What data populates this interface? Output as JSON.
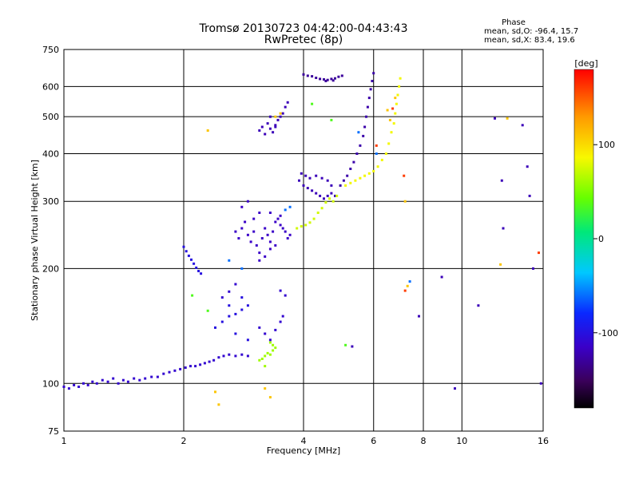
{
  "chart_data": {
    "type": "scatter",
    "title": "Tromsø 20130723 04:42:00-04:43:43",
    "subtitle": "RwPretec (8p)",
    "xlabel": "Frequency [MHz]",
    "ylabel": "Stationary phase Virtual Height [km]",
    "x_scale": "log",
    "y_scale": "log",
    "xlim": [
      1,
      16
    ],
    "ylim": [
      75,
      750
    ],
    "x_ticks": [
      {
        "value": 1,
        "label": "1"
      },
      {
        "value": 2,
        "label": "2"
      },
      {
        "value": 4,
        "label": "4"
      },
      {
        "value": 6,
        "label": "6"
      },
      {
        "value": 8,
        "label": "8"
      },
      {
        "value": 10,
        "label": "10"
      },
      {
        "value": 16,
        "label": "16"
      }
    ],
    "y_ticks": [
      {
        "value": 75,
        "label": "75"
      },
      {
        "value": 100,
        "label": "100"
      },
      {
        "value": 200,
        "label": "200"
      },
      {
        "value": 300,
        "label": "300"
      },
      {
        "value": 400,
        "label": "400"
      },
      {
        "value": 500,
        "label": "500"
      },
      {
        "value": 600,
        "label": "600"
      },
      {
        "value": 750,
        "label": "750"
      }
    ],
    "grid": true,
    "phase_stats": {
      "heading": "Phase",
      "line_o": "mean, sd,O: -96.4, 15.7",
      "line_x": "mean, sd,X:  83.4, 19.6"
    },
    "colorbar": {
      "label": "[deg]",
      "range": [
        -180,
        180
      ],
      "ticks": [
        {
          "value": 100,
          "label": "100"
        },
        {
          "value": 0,
          "label": "0"
        },
        {
          "value": -100,
          "label": "-100"
        }
      ]
    },
    "series": [
      {
        "phase": -110,
        "points": [
          [
            1.0,
            98
          ],
          [
            1.03,
            97
          ],
          [
            1.06,
            99
          ],
          [
            1.09,
            98
          ],
          [
            1.12,
            100
          ],
          [
            1.15,
            99
          ],
          [
            1.18,
            101
          ],
          [
            1.21,
            100
          ],
          [
            1.25,
            102
          ],
          [
            1.29,
            101
          ],
          [
            1.33,
            103
          ],
          [
            1.37,
            100
          ],
          [
            1.41,
            102
          ],
          [
            1.45,
            101
          ],
          [
            1.5,
            103
          ],
          [
            1.55,
            102
          ],
          [
            1.6,
            103
          ],
          [
            1.66,
            104
          ],
          [
            1.72,
            104
          ],
          [
            1.78,
            106
          ],
          [
            1.84,
            107
          ],
          [
            1.9,
            108
          ],
          [
            1.96,
            109
          ],
          [
            2.02,
            110
          ],
          [
            2.08,
            111
          ],
          [
            2.14,
            111
          ],
          [
            2.2,
            112
          ],
          [
            2.26,
            113
          ],
          [
            2.32,
            114
          ],
          [
            2.38,
            115
          ],
          [
            2.45,
            117
          ],
          [
            2.52,
            118
          ],
          [
            2.6,
            119
          ],
          [
            2.7,
            118
          ],
          [
            2.8,
            119
          ],
          [
            2.9,
            118
          ]
        ]
      },
      {
        "phase": -100,
        "points": [
          [
            2.0,
            228
          ],
          [
            2.03,
            222
          ],
          [
            2.06,
            216
          ],
          [
            2.09,
            211
          ],
          [
            2.12,
            206
          ],
          [
            2.15,
            201
          ],
          [
            2.18,
            197
          ],
          [
            2.21,
            194
          ],
          [
            2.4,
            140
          ],
          [
            2.5,
            145
          ],
          [
            2.6,
            150
          ],
          [
            2.7,
            152
          ],
          [
            2.8,
            156
          ],
          [
            2.9,
            160
          ],
          [
            2.6,
            160
          ],
          [
            2.8,
            168
          ],
          [
            2.7,
            135
          ],
          [
            2.9,
            130
          ]
        ]
      },
      {
        "phase": -115,
        "points": [
          [
            2.7,
            250
          ],
          [
            2.75,
            240
          ],
          [
            2.8,
            255
          ],
          [
            2.85,
            265
          ],
          [
            2.9,
            245
          ],
          [
            2.95,
            235
          ],
          [
            3.0,
            250
          ],
          [
            3.05,
            230
          ],
          [
            3.1,
            220
          ],
          [
            3.15,
            240
          ],
          [
            3.2,
            255
          ],
          [
            3.25,
            245
          ],
          [
            3.3,
            235
          ],
          [
            3.35,
            250
          ],
          [
            3.4,
            265
          ],
          [
            3.45,
            270
          ],
          [
            3.5,
            260
          ],
          [
            3.55,
            255
          ],
          [
            3.6,
            250
          ],
          [
            3.65,
            240
          ],
          [
            3.7,
            245
          ],
          [
            3.1,
            210
          ],
          [
            3.2,
            215
          ],
          [
            3.3,
            225
          ],
          [
            3.4,
            230
          ],
          [
            3.0,
            270
          ],
          [
            3.1,
            280
          ],
          [
            2.8,
            290
          ],
          [
            2.9,
            300
          ],
          [
            3.3,
            280
          ],
          [
            3.5,
            275
          ]
        ]
      },
      {
        "phase": -120,
        "points": [
          [
            3.1,
            460
          ],
          [
            3.15,
            470
          ],
          [
            3.2,
            450
          ],
          [
            3.25,
            480
          ],
          [
            3.3,
            465
          ],
          [
            3.35,
            455
          ],
          [
            3.4,
            475
          ],
          [
            3.45,
            490
          ],
          [
            3.5,
            500
          ],
          [
            3.55,
            510
          ],
          [
            3.6,
            530
          ],
          [
            3.65,
            545
          ],
          [
            3.3,
            500
          ],
          [
            3.4,
            470
          ]
        ]
      },
      {
        "phase": -120,
        "points": [
          [
            3.9,
            340
          ],
          [
            4.0,
            330
          ],
          [
            4.1,
            325
          ],
          [
            4.2,
            320
          ],
          [
            4.3,
            315
          ],
          [
            4.4,
            310
          ],
          [
            4.5,
            305
          ],
          [
            4.6,
            310
          ],
          [
            4.7,
            315
          ],
          [
            4.8,
            310
          ],
          [
            3.95,
            355
          ],
          [
            4.05,
            350
          ],
          [
            4.15,
            345
          ],
          [
            4.3,
            350
          ],
          [
            4.45,
            345
          ],
          [
            4.6,
            340
          ],
          [
            4.7,
            330
          ]
        ]
      },
      {
        "phase": -125,
        "points": [
          [
            4.95,
            330
          ],
          [
            5.05,
            340
          ],
          [
            5.15,
            350
          ],
          [
            5.25,
            365
          ],
          [
            5.35,
            380
          ],
          [
            5.45,
            400
          ],
          [
            5.55,
            420
          ],
          [
            5.65,
            445
          ],
          [
            5.7,
            470
          ],
          [
            5.75,
            500
          ],
          [
            5.8,
            530
          ],
          [
            5.85,
            560
          ],
          [
            5.9,
            590
          ],
          [
            5.95,
            620
          ],
          [
            6.0,
            650
          ]
        ]
      },
      {
        "phase": -130,
        "points": [
          [
            4.0,
            645
          ],
          [
            4.1,
            640
          ],
          [
            4.2,
            638
          ],
          [
            4.3,
            632
          ],
          [
            4.4,
            628
          ],
          [
            4.5,
            626
          ],
          [
            4.6,
            624
          ],
          [
            4.7,
            628
          ],
          [
            4.8,
            630
          ],
          [
            4.9,
            636
          ],
          [
            5.0,
            640
          ],
          [
            4.55,
            620
          ],
          [
            4.75,
            622
          ]
        ]
      },
      {
        "phase": -110,
        "points": [
          [
            2.5,
            168
          ],
          [
            2.6,
            174
          ],
          [
            2.7,
            182
          ],
          [
            3.1,
            140
          ],
          [
            3.2,
            135
          ],
          [
            3.3,
            130
          ],
          [
            3.4,
            138
          ],
          [
            3.5,
            145
          ],
          [
            3.55,
            150
          ],
          [
            3.6,
            170
          ],
          [
            3.5,
            175
          ]
        ]
      },
      {
        "phase": 60,
        "points": [
          [
            3.1,
            115
          ],
          [
            3.15,
            116
          ],
          [
            3.2,
            118
          ],
          [
            3.25,
            120
          ],
          [
            3.3,
            119
          ],
          [
            3.35,
            122
          ],
          [
            3.4,
            124
          ],
          [
            3.3,
            128
          ],
          [
            3.35,
            126
          ],
          [
            3.2,
            111
          ]
        ]
      },
      {
        "phase": 75,
        "points": [
          [
            3.85,
            255
          ],
          [
            3.95,
            258
          ],
          [
            4.05,
            260
          ],
          [
            4.15,
            264
          ],
          [
            4.25,
            270
          ],
          [
            4.35,
            280
          ],
          [
            4.45,
            288
          ],
          [
            4.55,
            298
          ],
          [
            4.65,
            305
          ],
          [
            4.75,
            300
          ],
          [
            4.85,
            310
          ]
        ]
      },
      {
        "phase": 85,
        "points": [
          [
            5.1,
            330
          ],
          [
            5.25,
            335
          ],
          [
            5.4,
            340
          ],
          [
            5.55,
            345
          ],
          [
            5.7,
            350
          ],
          [
            5.85,
            355
          ],
          [
            6.0,
            360
          ],
          [
            6.15,
            370
          ],
          [
            6.3,
            385
          ],
          [
            6.45,
            400
          ],
          [
            6.55,
            425
          ],
          [
            6.65,
            455
          ],
          [
            6.75,
            480
          ],
          [
            6.8,
            510
          ],
          [
            6.85,
            540
          ],
          [
            6.9,
            570
          ],
          [
            6.95,
            600
          ],
          [
            7.0,
            630
          ]
        ]
      },
      {
        "phase": 110,
        "points": [
          [
            3.4,
            500
          ],
          [
            3.5,
            510
          ],
          [
            2.3,
            460
          ],
          [
            2.4,
            95
          ],
          [
            2.45,
            88
          ],
          [
            3.2,
            97
          ],
          [
            3.3,
            92
          ],
          [
            7.2,
            300
          ],
          [
            7.3,
            180
          ],
          [
            6.5,
            520
          ],
          [
            6.6,
            490
          ],
          [
            6.8,
            560
          ],
          [
            12.5,
            205
          ],
          [
            13.0,
            495
          ]
        ]
      },
      {
        "phase": -60,
        "points": [
          [
            2.6,
            210
          ],
          [
            2.8,
            200
          ],
          [
            3.6,
            285
          ],
          [
            3.7,
            290
          ],
          [
            5.5,
            455
          ],
          [
            6.1,
            400
          ],
          [
            7.4,
            185
          ]
        ]
      },
      {
        "phase": -120,
        "points": [
          [
            12.6,
            340
          ],
          [
            12.7,
            255
          ],
          [
            12.1,
            495
          ],
          [
            14.8,
            310
          ],
          [
            14.6,
            370
          ],
          [
            7.8,
            150
          ],
          [
            11.0,
            160
          ],
          [
            9.6,
            97
          ],
          [
            5.3,
            125
          ],
          [
            15.8,
            100
          ],
          [
            15.1,
            200
          ],
          [
            8.9,
            190
          ],
          [
            14.2,
            475
          ]
        ]
      },
      {
        "phase": 160,
        "points": [
          [
            7.2,
            175
          ],
          [
            6.7,
            525
          ],
          [
            7.15,
            350
          ],
          [
            6.1,
            420
          ],
          [
            15.6,
            220
          ]
        ]
      },
      {
        "phase": 35,
        "points": [
          [
            5.1,
            126
          ],
          [
            2.1,
            170
          ],
          [
            2.3,
            155
          ],
          [
            4.7,
            490
          ],
          [
            4.2,
            540
          ]
        ]
      }
    ]
  }
}
